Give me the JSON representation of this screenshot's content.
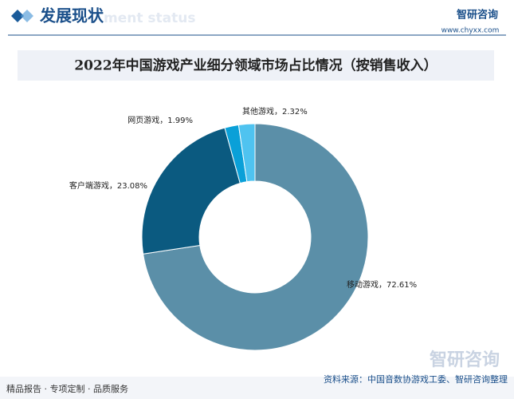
{
  "header": {
    "title": "发展现状",
    "subtitle": "ment status",
    "logo": "智研咨询",
    "url": "www.chyxx.com"
  },
  "chart_data": {
    "type": "donut",
    "title": "2022年中国游戏产业细分领域市场占比情况（按销售收入）",
    "categories": [
      "移动游戏",
      "客户端游戏",
      "网页游戏",
      "其他游戏"
    ],
    "values": [
      72.61,
      23.08,
      1.99,
      2.32
    ],
    "value_labels": [
      "移动游戏，72.61%",
      "客户端游戏，23.08%",
      "网页游戏，1.99%",
      "其他游戏，2.32%"
    ],
    "colors": [
      "#5b8fa8",
      "#0b5a80",
      "#0aa0d8",
      "#4fc3f0"
    ]
  },
  "footer": {
    "left": "精品报告 · 专项定制 · 品质服务",
    "source": "资料来源：中国音数协游戏工委、智研咨询整理",
    "logo": "智研咨询"
  }
}
